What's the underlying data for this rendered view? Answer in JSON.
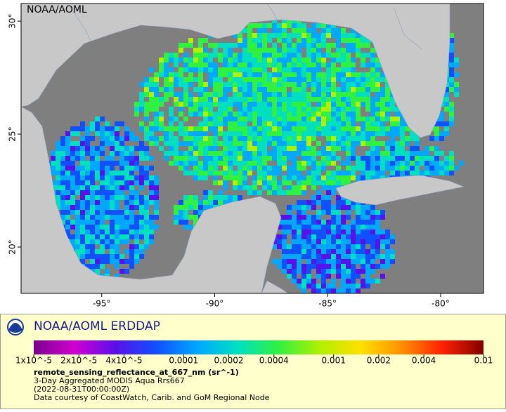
{
  "map": {
    "watermark": "NOAA/AOML",
    "lon_range": [
      -98.57,
      -78.1
    ],
    "lat_range": [
      17.95,
      30.78
    ],
    "lon_ticks": [
      {
        "value": -95,
        "label": "-95°"
      },
      {
        "value": -90,
        "label": "-90°"
      },
      {
        "value": -85,
        "label": "-85°"
      },
      {
        "value": -80,
        "label": "-80°"
      }
    ],
    "lat_ticks": [
      {
        "value": 20,
        "label": "20°"
      },
      {
        "value": 25,
        "label": "25°"
      },
      {
        "value": 30,
        "label": "30°"
      }
    ]
  },
  "legend": {
    "title": "NOAA/AOML ERDDAP",
    "colorbar": {
      "range": [
        1e-05,
        0.01
      ],
      "log": true,
      "colors": [
        "#7a0090",
        "#d000d0",
        "#5a10e8",
        "#1050ff",
        "#00a8ff",
        "#00e0c0",
        "#30f040",
        "#b0f000",
        "#ffe000",
        "#ff9000",
        "#ff2000",
        "#800000"
      ],
      "ticks": [
        {
          "value": 1e-05,
          "label": "1x10^-5"
        },
        {
          "value": 2e-05,
          "label": "2x10^-5"
        },
        {
          "value": 4e-05,
          "label": "4x10^-5"
        },
        0.0001,
        0.0002,
        0.0004,
        0.001,
        0.002,
        0.004,
        0.01
      ]
    },
    "variable": "remote_sensing_reflectance_at_667_nm (sr^-1)",
    "lines": [
      "3-Day Aggregated MODIS Aqua Rrs667",
      "(2022-08-31T00:00:00Z)",
      "Data courtesy of CoastWatch, Carib. and GoM Regional Node"
    ]
  }
}
